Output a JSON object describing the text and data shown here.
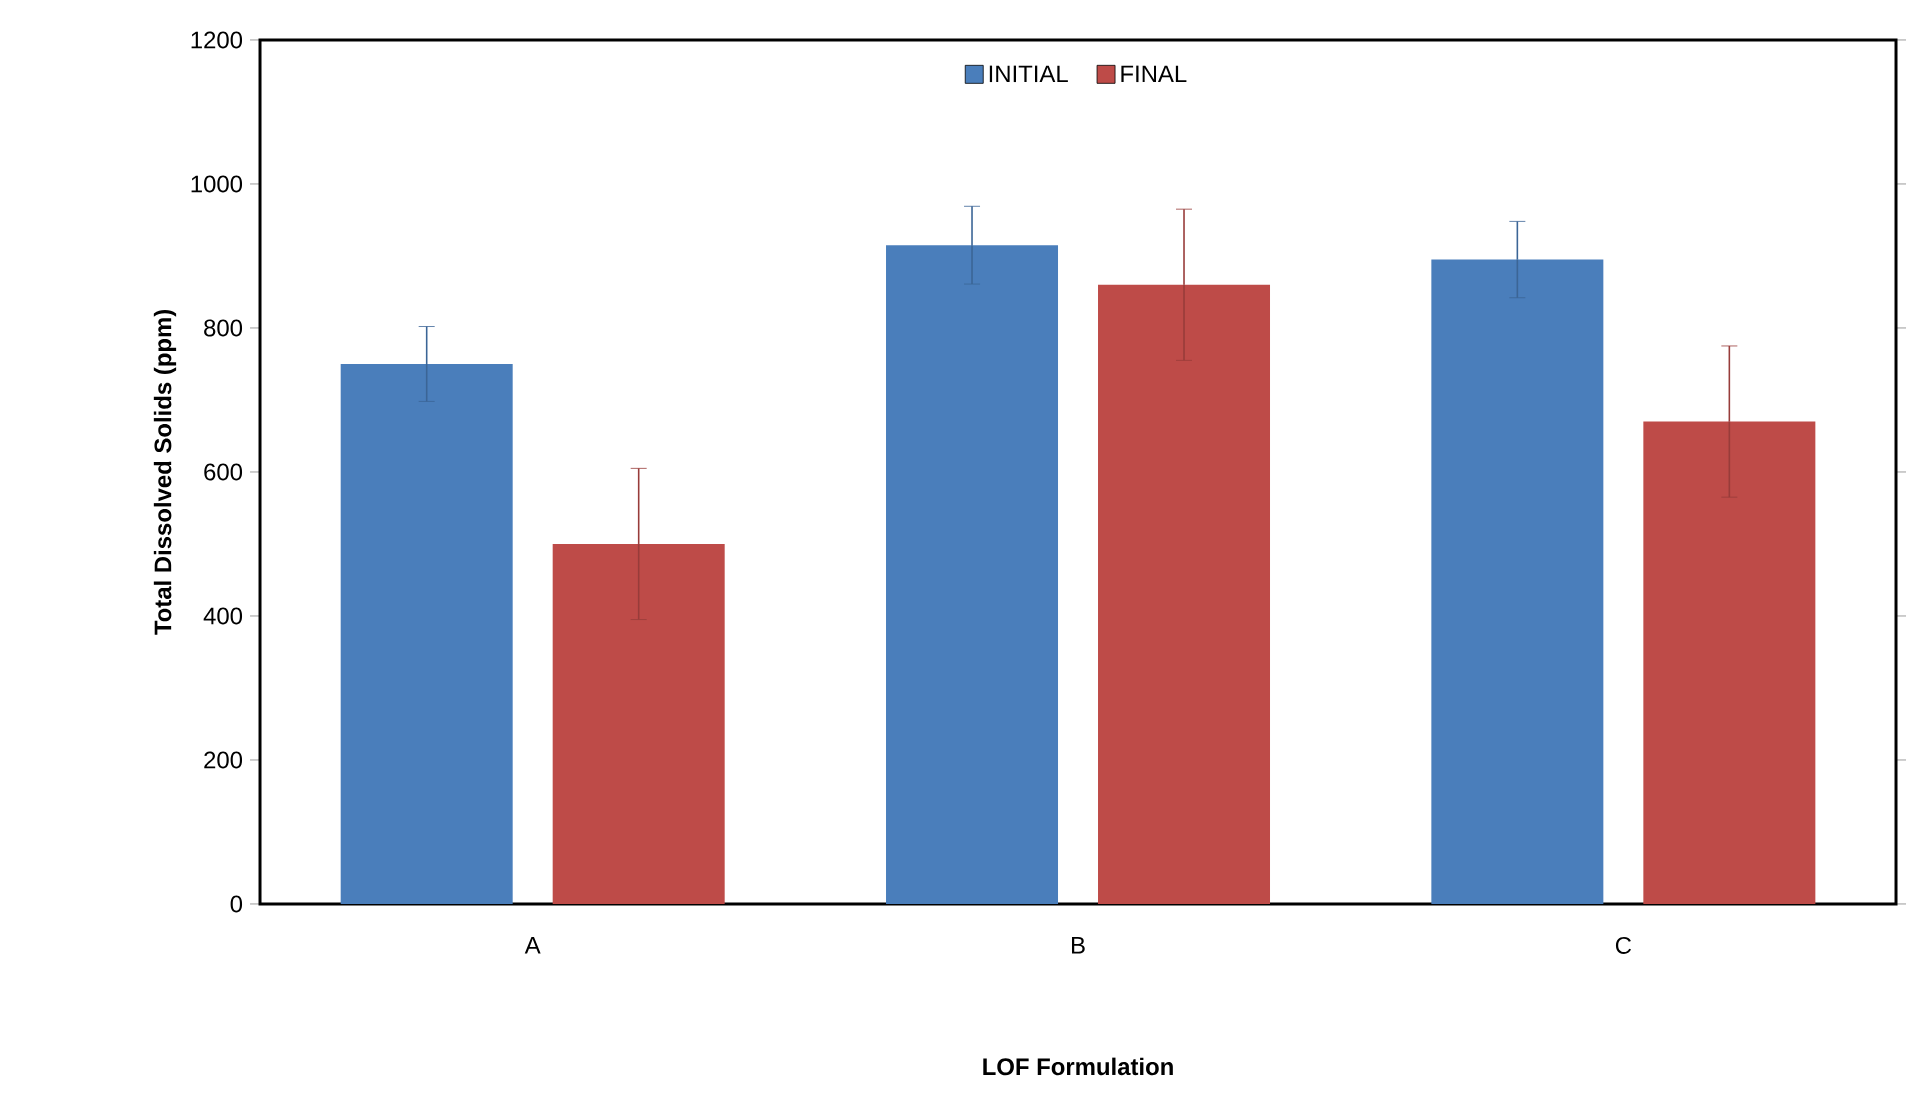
{
  "chart_data": {
    "type": "bar",
    "xlabel": "LOF Formulation",
    "ylabel": "Total Dissolved Solids (ppm)",
    "categories": [
      "A",
      "B",
      "C"
    ],
    "series": [
      {
        "name": "INITIAL",
        "color": "#4a7ebb",
        "values": [
          750,
          915,
          895
        ],
        "errors": [
          52,
          54,
          53
        ]
      },
      {
        "name": "FINAL",
        "color": "#be4b48",
        "values": [
          500,
          860,
          670
        ],
        "errors": [
          105,
          105,
          105
        ]
      }
    ],
    "ylim": [
      0,
      1200
    ],
    "yticks": [
      0,
      200,
      400,
      600,
      800,
      1000,
      1200
    ],
    "legend": "top",
    "grid": false
  }
}
